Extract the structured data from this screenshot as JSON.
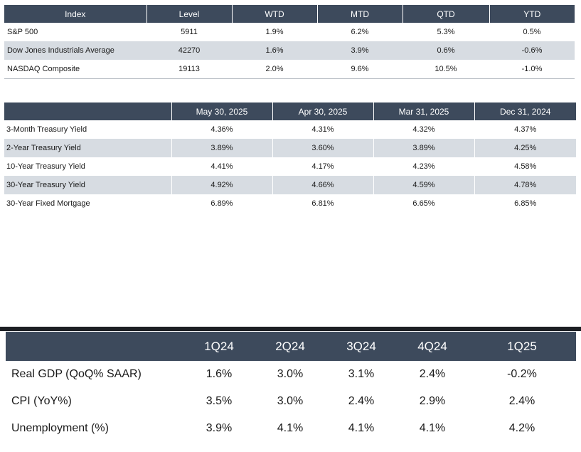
{
  "indices": {
    "headers": [
      "Index",
      "Level",
      "WTD",
      "MTD",
      "QTD",
      "YTD"
    ],
    "rows": [
      [
        "S&P 500",
        "5911",
        "1.9%",
        "6.2%",
        "5.3%",
        "0.5%"
      ],
      [
        "Dow Jones Industrials Average",
        "42270",
        "1.6%",
        "3.9%",
        "0.6%",
        "-0.6%"
      ],
      [
        "NASDAQ Composite",
        "19113",
        "2.0%",
        "9.6%",
        "10.5%",
        "-1.0%"
      ]
    ]
  },
  "yields": {
    "headers": [
      "",
      "May 30, 2025",
      "Apr 30, 2025",
      "Mar 31, 2025",
      "Dec 31, 2024"
    ],
    "rows": [
      [
        "3-Month Treasury Yield",
        "4.36%",
        "4.31%",
        "4.32%",
        "4.37%"
      ],
      [
        "2-Year Treasury Yield",
        "3.89%",
        "3.60%",
        "3.89%",
        "4.25%"
      ],
      [
        "10-Year Treasury Yield",
        "4.41%",
        "4.17%",
        "4.23%",
        "4.58%"
      ],
      [
        "30-Year Treasury Yield",
        "4.92%",
        "4.66%",
        "4.59%",
        "4.78%"
      ],
      [
        "30-Year Fixed Mortgage",
        "6.89%",
        "6.81%",
        "6.65%",
        "6.85%"
      ]
    ]
  },
  "economy": {
    "headers": [
      "",
      "1Q24",
      "2Q24",
      "3Q24",
      "4Q24",
      "1Q25"
    ],
    "rows": [
      [
        "Real GDP (QoQ% SAAR)",
        "1.6%",
        "3.0%",
        "3.1%",
        "2.4%",
        "-0.2%"
      ],
      [
        "CPI (YoY%)",
        "3.5%",
        "3.0%",
        "2.4%",
        "2.9%",
        "2.4%"
      ],
      [
        "Unemployment (%)",
        "3.9%",
        "4.1%",
        "4.1%",
        "4.1%",
        "4.2%"
      ]
    ]
  },
  "colors": {
    "header_bg": "#3d4a5c",
    "header_text": "#ffffff",
    "shaded_row": "#d7dce2",
    "divider": "#1c1f24"
  }
}
